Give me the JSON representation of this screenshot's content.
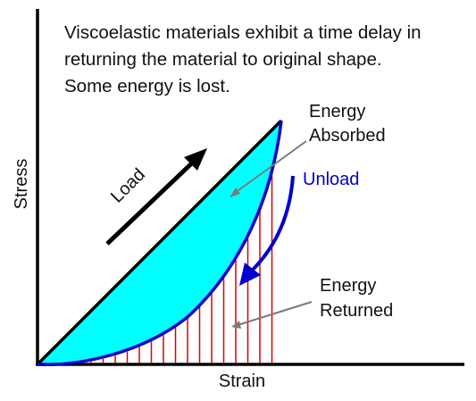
{
  "description": {
    "lines": [
      "Viscoelastic materials exhibit a time delay in",
      "returning the material to original shape.",
      "Some energy is lost."
    ]
  },
  "axes": {
    "xlabel": "Strain",
    "ylabel": "Stress"
  },
  "labels": {
    "load": "Load",
    "unload": "Unload",
    "energy_absorbed": [
      "Energy",
      "Absorbed"
    ],
    "energy_returned": [
      "Energy",
      "Returned"
    ]
  },
  "colors": {
    "absorbed_fill": "#00ffff",
    "unload_curve": "#0000cc",
    "returned_hatch": "#dd0000",
    "load_line": "#000000",
    "pointer": "#888888"
  }
}
